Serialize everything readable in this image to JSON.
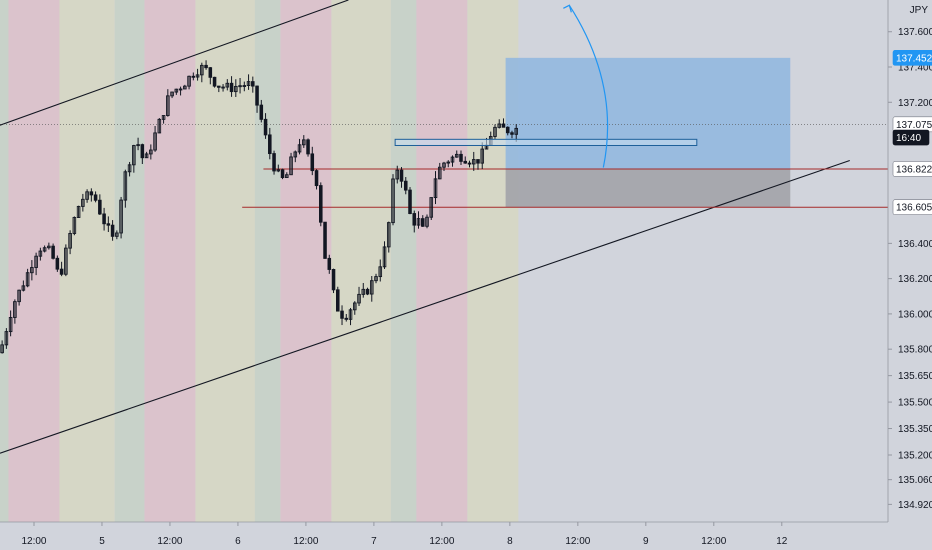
{
  "chart_data": {
    "type": "candlestick",
    "symbol_currency": "JPY",
    "colors": {
      "background": "#d1d4dc",
      "candle": "#131722",
      "band_pink": "#dbc3cc",
      "band_green": "#c8d2c9",
      "band_yellow": "#d6d7c6",
      "profit_zone": "#8fb6df",
      "loss_zone": "#a2a3a8",
      "level_line": "#a52a2a",
      "label_blue": "#2196f3",
      "label_dark": "#131722",
      "arrow": "#2196f3"
    },
    "y_axis": {
      "range": [
        134.82,
        137.78
      ],
      "ticks": [
        {
          "value": 137.6,
          "label": "137.600"
        },
        {
          "value": 137.4,
          "label": "137.400"
        },
        {
          "value": 137.2,
          "label": "137.200"
        },
        {
          "value": 136.4,
          "label": "136.400"
        },
        {
          "value": 136.2,
          "label": "136.200"
        },
        {
          "value": 136.0,
          "label": "136.000"
        },
        {
          "value": 135.8,
          "label": "135.800"
        },
        {
          "value": 135.65,
          "label": "135.650"
        },
        {
          "value": 135.5,
          "label": "135.500"
        },
        {
          "value": 135.35,
          "label": "135.350"
        },
        {
          "value": 135.2,
          "label": "135.200"
        },
        {
          "value": 135.06,
          "label": "135.060"
        },
        {
          "value": 134.92,
          "label": "134.920"
        }
      ]
    },
    "x_axis": {
      "range": [
        0,
        209
      ],
      "ticks": [
        {
          "x": 8,
          "label": "12:00"
        },
        {
          "x": 24,
          "label": "5"
        },
        {
          "x": 40,
          "label": "12:00"
        },
        {
          "x": 56,
          "label": "6"
        },
        {
          "x": 72,
          "label": "12:00"
        },
        {
          "x": 88,
          "label": "7"
        },
        {
          "x": 104,
          "label": "12:00"
        },
        {
          "x": 120,
          "label": "8"
        },
        {
          "x": 136,
          "label": "12:00"
        },
        {
          "x": 152,
          "label": "9"
        },
        {
          "x": 168,
          "label": "12:00"
        },
        {
          "x": 184,
          "label": "12"
        }
      ]
    },
    "price_labels": [
      {
        "value": 137.452,
        "label": "137.452",
        "style": "blue"
      },
      {
        "value": 137.075,
        "label": "137.075",
        "style": "light"
      },
      {
        "value": 137.0,
        "label": "16:40",
        "style": "dark"
      },
      {
        "value": 136.822,
        "label": "136.822",
        "style": "light"
      },
      {
        "value": 136.605,
        "label": "136.605",
        "style": "light"
      }
    ],
    "sessions": [
      {
        "start": 0,
        "end": 2,
        "color": "green"
      },
      {
        "start": 2,
        "end": 14,
        "color": "pink"
      },
      {
        "start": 14,
        "end": 27,
        "color": "yellow"
      },
      {
        "start": 27,
        "end": 34,
        "color": "green"
      },
      {
        "start": 34,
        "end": 46,
        "color": "pink"
      },
      {
        "start": 46,
        "end": 60,
        "color": "yellow"
      },
      {
        "start": 60,
        "end": 66,
        "color": "green"
      },
      {
        "start": 66,
        "end": 78,
        "color": "pink"
      },
      {
        "start": 78,
        "end": 92,
        "color": "yellow"
      },
      {
        "start": 92,
        "end": 98,
        "color": "green"
      },
      {
        "start": 98,
        "end": 110,
        "color": "pink"
      },
      {
        "start": 110,
        "end": 122,
        "color": "yellow"
      }
    ],
    "path_points": [
      [
        0,
        135.78
      ],
      [
        3,
        136.05
      ],
      [
        6,
        136.2
      ],
      [
        9,
        136.38
      ],
      [
        12,
        136.35
      ],
      [
        14,
        136.2
      ],
      [
        17,
        136.5
      ],
      [
        19,
        136.65
      ],
      [
        22,
        136.68
      ],
      [
        24,
        136.55
      ],
      [
        27,
        136.4
      ],
      [
        29,
        136.75
      ],
      [
        32,
        137.0
      ],
      [
        34,
        136.85
      ],
      [
        37,
        137.05
      ],
      [
        40,
        137.25
      ],
      [
        43,
        137.3
      ],
      [
        46,
        137.38
      ],
      [
        48,
        137.4
      ],
      [
        51,
        137.3
      ],
      [
        54,
        137.28
      ],
      [
        57,
        137.3
      ],
      [
        59,
        137.3
      ],
      [
        61,
        137.15
      ],
      [
        63,
        136.95
      ],
      [
        65,
        136.8
      ],
      [
        67,
        136.75
      ],
      [
        69,
        136.9
      ],
      [
        71,
        137.0
      ],
      [
        73,
        136.85
      ],
      [
        75,
        136.72
      ],
      [
        76,
        136.35
      ],
      [
        77,
        136.3
      ],
      [
        79,
        136.05
      ],
      [
        81,
        135.98
      ],
      [
        83,
        136.05
      ],
      [
        85,
        136.1
      ],
      [
        87,
        136.15
      ],
      [
        89,
        136.25
      ],
      [
        91,
        136.4
      ],
      [
        93,
        136.85
      ],
      [
        95,
        136.75
      ],
      [
        97,
        136.5
      ],
      [
        98,
        136.55
      ],
      [
        100,
        136.45
      ],
      [
        102,
        136.75
      ],
      [
        104,
        136.85
      ],
      [
        106,
        136.88
      ],
      [
        108,
        136.9
      ],
      [
        110,
        136.88
      ],
      [
        112,
        136.86
      ],
      [
        114,
        136.92
      ],
      [
        116,
        137.05
      ],
      [
        118,
        137.05
      ],
      [
        120,
        137.04
      ],
      [
        121,
        137.05
      ]
    ],
    "trendlines": [
      {
        "x1": 0,
        "y1": 137.07,
        "x2": 82,
        "y2": 137.78
      },
      {
        "x1": 0,
        "y1": 135.21,
        "x2": 200,
        "y2": 136.87
      }
    ],
    "horizontal_levels": [
      {
        "x1": 62,
        "x2": 209,
        "value": 136.822
      },
      {
        "x1": 57,
        "x2": 209,
        "value": 136.605
      }
    ],
    "current_price_line": {
      "value": 137.075
    },
    "consolidation_box": {
      "x1": 93,
      "x2": 164,
      "top": 136.99,
      "bottom": 136.955
    },
    "position": {
      "x1": 119,
      "x2": 186,
      "target": 137.452,
      "entry": 136.822,
      "stop": 136.605
    },
    "arrow": {
      "from_x": 142,
      "from_y": 136.83,
      "ctrl_x": 146,
      "ctrl_y": 137.3,
      "to_x": 134,
      "to_y": 137.75
    }
  }
}
